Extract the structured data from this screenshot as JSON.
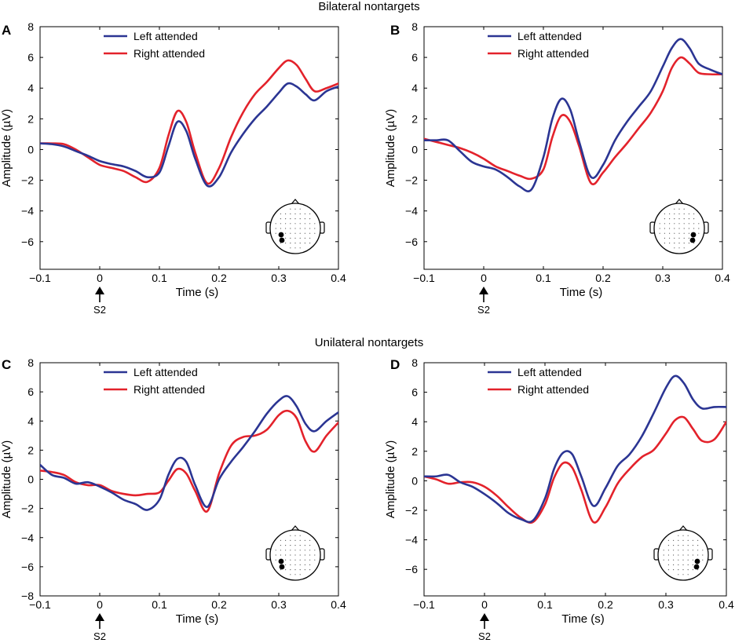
{
  "section_titles": [
    "Bilateral nontargets",
    "Unilateral nontargets"
  ],
  "colors": {
    "left": "#2b3593",
    "right": "#e3222b"
  },
  "chart_data": [
    {
      "type": "line",
      "panel_label": "A",
      "xlabel": "Time (s)",
      "ylabel": "Amplitude (µV)",
      "xlim": [
        -0.1,
        0.4
      ],
      "ylim": [
        -7.8,
        8
      ],
      "xticks": [
        -0.1,
        0,
        0.1,
        0.2,
        0.3,
        0.4
      ],
      "xtick_labels": [
        "−0.1",
        "0",
        "0.1",
        "0.2",
        "0.3",
        "0.4"
      ],
      "yticks": [
        -6,
        -4,
        -2,
        0,
        2,
        4,
        6,
        8
      ],
      "ytick_labels": [
        "−6",
        "−4",
        "−2",
        "0",
        "2",
        "4",
        "6",
        "8"
      ],
      "marker_label": "S2",
      "marker_x": 0,
      "legend": "top-left",
      "electrode_side": "left",
      "series": [
        {
          "name": "Left attended",
          "color": "#2b3593",
          "x": [
            -0.1,
            -0.08,
            -0.06,
            -0.04,
            -0.02,
            0,
            0.02,
            0.04,
            0.06,
            0.08,
            0.1,
            0.115,
            0.13,
            0.145,
            0.16,
            0.18,
            0.2,
            0.22,
            0.24,
            0.26,
            0.28,
            0.3,
            0.315,
            0.33,
            0.345,
            0.36,
            0.38,
            0.4
          ],
          "y": [
            0.4,
            0.35,
            0.2,
            -0.1,
            -0.4,
            -0.75,
            -0.95,
            -1.1,
            -1.4,
            -1.8,
            -1.5,
            0.2,
            1.8,
            1.2,
            -0.6,
            -2.35,
            -1.8,
            -0.2,
            1.0,
            2.0,
            2.8,
            3.7,
            4.3,
            4.1,
            3.6,
            3.2,
            3.8,
            4.1
          ]
        },
        {
          "name": "Right attended",
          "color": "#e3222b",
          "x": [
            -0.1,
            -0.08,
            -0.06,
            -0.04,
            -0.02,
            0,
            0.02,
            0.04,
            0.06,
            0.08,
            0.1,
            0.115,
            0.13,
            0.145,
            0.16,
            0.18,
            0.2,
            0.22,
            0.24,
            0.26,
            0.28,
            0.3,
            0.315,
            0.33,
            0.345,
            0.36,
            0.38,
            0.4
          ],
          "y": [
            0.4,
            0.4,
            0.35,
            0.0,
            -0.5,
            -1.0,
            -1.2,
            -1.4,
            -1.8,
            -2.1,
            -1.2,
            0.9,
            2.5,
            1.8,
            -0.2,
            -2.2,
            -1.2,
            0.8,
            2.4,
            3.6,
            4.4,
            5.3,
            5.8,
            5.5,
            4.6,
            3.8,
            4.0,
            4.3
          ]
        }
      ]
    },
    {
      "type": "line",
      "panel_label": "B",
      "xlabel": "Time (s)",
      "ylabel": "Amplitude (µV)",
      "xlim": [
        -0.1,
        0.4
      ],
      "ylim": [
        -7.8,
        8
      ],
      "xticks": [
        -0.1,
        0,
        0.1,
        0.2,
        0.3,
        0.4
      ],
      "xtick_labels": [
        "−0.1",
        "0",
        "0.1",
        "0.2",
        "0.3",
        "0.4"
      ],
      "yticks": [
        -6,
        -4,
        -2,
        0,
        2,
        4,
        6,
        8
      ],
      "ytick_labels": [
        "−6",
        "−4",
        "−2",
        "0",
        "2",
        "4",
        "6",
        "8"
      ],
      "marker_label": "S2",
      "marker_x": 0,
      "legend": "top-left",
      "electrode_side": "right",
      "series": [
        {
          "name": "Left attended",
          "color": "#2b3593",
          "x": [
            -0.1,
            -0.08,
            -0.06,
            -0.04,
            -0.02,
            0,
            0.02,
            0.04,
            0.06,
            0.08,
            0.1,
            0.115,
            0.13,
            0.145,
            0.16,
            0.18,
            0.2,
            0.22,
            0.24,
            0.26,
            0.28,
            0.3,
            0.315,
            0.33,
            0.345,
            0.36,
            0.38,
            0.4
          ],
          "y": [
            0.6,
            0.6,
            0.6,
            -0.1,
            -0.8,
            -1.1,
            -1.3,
            -1.8,
            -2.4,
            -2.6,
            -0.5,
            2.0,
            3.3,
            2.6,
            0.5,
            -1.8,
            -1.0,
            0.6,
            1.8,
            2.8,
            3.8,
            5.4,
            6.6,
            7.2,
            6.6,
            5.6,
            5.2,
            4.9
          ]
        },
        {
          "name": "Right attended",
          "color": "#e3222b",
          "x": [
            -0.1,
            -0.08,
            -0.06,
            -0.04,
            -0.02,
            0,
            0.02,
            0.04,
            0.06,
            0.08,
            0.1,
            0.115,
            0.13,
            0.145,
            0.16,
            0.18,
            0.2,
            0.22,
            0.24,
            0.26,
            0.28,
            0.3,
            0.315,
            0.33,
            0.345,
            0.36,
            0.38,
            0.4
          ],
          "y": [
            0.7,
            0.5,
            0.3,
            0.1,
            -0.2,
            -0.6,
            -1.1,
            -1.4,
            -1.7,
            -1.9,
            -1.3,
            0.8,
            2.2,
            1.8,
            0.2,
            -2.2,
            -1.5,
            -0.5,
            0.4,
            1.4,
            2.4,
            3.8,
            5.3,
            6.0,
            5.6,
            5.0,
            4.9,
            4.9
          ]
        }
      ]
    },
    {
      "type": "line",
      "panel_label": "C",
      "xlabel": "Time (s)",
      "ylabel": "Amplitude (µV)",
      "xlim": [
        -0.1,
        0.4
      ],
      "ylim": [
        -8,
        8
      ],
      "xticks": [
        -0.1,
        0,
        0.1,
        0.2,
        0.3,
        0.4
      ],
      "xtick_labels": [
        "−0.1",
        "0",
        "0.1",
        "0.2",
        "0.3",
        "0.4"
      ],
      "yticks": [
        -8,
        -6,
        -4,
        -2,
        0,
        2,
        4,
        6,
        8
      ],
      "ytick_labels": [
        "−8",
        "−6",
        "−4",
        "−2",
        "0",
        "2",
        "4",
        "6",
        "8"
      ],
      "marker_label": "S2",
      "marker_x": 0,
      "legend": "top-left",
      "electrode_side": "left",
      "series": [
        {
          "name": "Left attended",
          "color": "#2b3593",
          "x": [
            -0.1,
            -0.08,
            -0.06,
            -0.04,
            -0.02,
            0,
            0.02,
            0.04,
            0.06,
            0.08,
            0.1,
            0.115,
            0.13,
            0.145,
            0.16,
            0.18,
            0.2,
            0.22,
            0.24,
            0.26,
            0.28,
            0.3,
            0.315,
            0.33,
            0.345,
            0.36,
            0.38,
            0.4
          ],
          "y": [
            1.0,
            0.3,
            0.1,
            -0.3,
            -0.2,
            -0.5,
            -0.9,
            -1.4,
            -1.7,
            -2.1,
            -1.4,
            0.3,
            1.4,
            1.2,
            -0.4,
            -1.9,
            0.0,
            1.2,
            2.2,
            3.3,
            4.5,
            5.4,
            5.7,
            5.0,
            3.8,
            3.3,
            4.0,
            4.6
          ]
        },
        {
          "name": "Right attended",
          "color": "#e3222b",
          "x": [
            -0.1,
            -0.08,
            -0.06,
            -0.04,
            -0.02,
            0,
            0.02,
            0.04,
            0.06,
            0.08,
            0.1,
            0.115,
            0.13,
            0.145,
            0.16,
            0.18,
            0.2,
            0.22,
            0.24,
            0.26,
            0.28,
            0.3,
            0.315,
            0.33,
            0.345,
            0.36,
            0.38,
            0.4
          ],
          "y": [
            0.6,
            0.5,
            0.3,
            -0.2,
            -0.4,
            -0.4,
            -0.8,
            -1.0,
            -1.1,
            -1.0,
            -0.9,
            -0.1,
            0.7,
            0.4,
            -0.8,
            -2.2,
            0.4,
            2.3,
            2.9,
            3.0,
            3.4,
            4.4,
            4.7,
            4.2,
            2.6,
            1.9,
            3.0,
            3.9
          ]
        }
      ]
    },
    {
      "type": "line",
      "panel_label": "D",
      "xlabel": "Time (s)",
      "ylabel": "Amplitude (µV)",
      "xlim": [
        -0.1,
        0.4
      ],
      "ylim": [
        -7.8,
        8
      ],
      "xticks": [
        -0.1,
        0,
        0.1,
        0.2,
        0.3,
        0.4
      ],
      "xtick_labels": [
        "−0.1",
        "0",
        "0.1",
        "0.2",
        "0.3",
        "0.4"
      ],
      "yticks": [
        -6,
        -4,
        -2,
        0,
        2,
        4,
        6,
        8
      ],
      "ytick_labels": [
        "−6",
        "−4",
        "−2",
        "0",
        "2",
        "4",
        "6",
        "8"
      ],
      "marker_label": "S2",
      "marker_x": 0,
      "legend": "top-left",
      "electrode_side": "right",
      "series": [
        {
          "name": "Left attended",
          "color": "#2b3593",
          "x": [
            -0.1,
            -0.08,
            -0.06,
            -0.04,
            -0.02,
            0,
            0.02,
            0.04,
            0.06,
            0.08,
            0.1,
            0.115,
            0.13,
            0.145,
            0.16,
            0.18,
            0.2,
            0.22,
            0.24,
            0.26,
            0.28,
            0.3,
            0.315,
            0.33,
            0.345,
            0.36,
            0.38,
            0.4
          ],
          "y": [
            0.3,
            0.3,
            0.4,
            -0.1,
            -0.4,
            -0.9,
            -1.5,
            -2.2,
            -2.6,
            -2.7,
            -1.2,
            0.8,
            1.9,
            1.8,
            0.3,
            -1.7,
            -0.5,
            1.0,
            1.8,
            3.0,
            4.6,
            6.3,
            7.1,
            6.6,
            5.5,
            4.9,
            5.0,
            5.0
          ]
        },
        {
          "name": "Right attended",
          "color": "#e3222b",
          "x": [
            -0.1,
            -0.08,
            -0.06,
            -0.04,
            -0.02,
            0,
            0.02,
            0.04,
            0.06,
            0.08,
            0.1,
            0.115,
            0.13,
            0.145,
            0.16,
            0.18,
            0.2,
            0.22,
            0.24,
            0.26,
            0.28,
            0.3,
            0.315,
            0.33,
            0.345,
            0.36,
            0.38,
            0.4
          ],
          "y": [
            0.3,
            0.1,
            -0.2,
            -0.1,
            -0.1,
            -0.4,
            -1.0,
            -1.8,
            -2.5,
            -2.8,
            -1.6,
            0.2,
            1.2,
            0.9,
            -0.6,
            -2.8,
            -1.8,
            -0.2,
            0.8,
            1.6,
            2.1,
            3.2,
            4.1,
            4.3,
            3.5,
            2.7,
            2.8,
            4.0
          ]
        }
      ]
    }
  ]
}
